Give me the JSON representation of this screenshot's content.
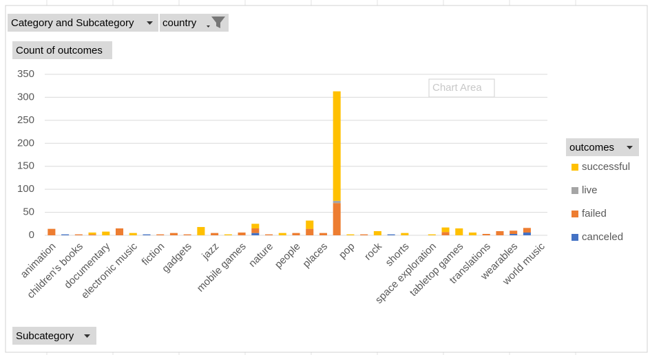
{
  "field_buttons": {
    "category": "Category and Subcategory",
    "country": "country",
    "values": "Count of outcomes",
    "legend": "outcomes",
    "axis": "Subcategory"
  },
  "tooltip": "Chart Area",
  "chart_data": {
    "type": "bar",
    "stacked": true,
    "categories": [
      "animation",
      null,
      "children's books",
      null,
      "documentary",
      null,
      "electronic music",
      null,
      "fiction",
      null,
      "gadgets",
      null,
      "jazz",
      null,
      "mobile games",
      null,
      "nature",
      null,
      "people",
      null,
      "places",
      null,
      "pop",
      null,
      "rock",
      null,
      "shorts",
      null,
      "space exploration",
      null,
      "tabletop games",
      null,
      "translations",
      null,
      "wearables",
      null,
      "world music"
    ],
    "series": [
      {
        "name": "canceled",
        "color": "#4472c4",
        "values": [
          0,
          2,
          0,
          0,
          0,
          0,
          0,
          2,
          0,
          0,
          0,
          0,
          0,
          0,
          0,
          5,
          0,
          0,
          0,
          0,
          0,
          0,
          0,
          0,
          0,
          2,
          0,
          0,
          0,
          0,
          0,
          0,
          0,
          0,
          3,
          6,
          0
        ]
      },
      {
        "name": "failed",
        "color": "#ed7d31",
        "values": [
          14,
          0,
          2,
          2,
          0,
          15,
          0,
          0,
          2,
          5,
          2,
          0,
          5,
          0,
          6,
          10,
          2,
          0,
          5,
          14,
          5,
          70,
          0,
          2,
          0,
          0,
          0,
          0,
          0,
          7,
          0,
          0,
          3,
          9,
          7,
          10,
          0
        ]
      },
      {
        "name": "live",
        "color": "#a5a5a5",
        "values": [
          0,
          0,
          0,
          0,
          0,
          0,
          0,
          0,
          0,
          0,
          0,
          0,
          0,
          0,
          0,
          0,
          0,
          0,
          0,
          0,
          0,
          5,
          0,
          0,
          0,
          0,
          0,
          0,
          0,
          0,
          0,
          0,
          0,
          0,
          0,
          0,
          0
        ]
      },
      {
        "name": "successful",
        "color": "#ffc000",
        "values": [
          0,
          0,
          0,
          4,
          8,
          0,
          5,
          0,
          0,
          0,
          0,
          18,
          0,
          2,
          0,
          10,
          0,
          5,
          0,
          18,
          0,
          238,
          2,
          0,
          9,
          0,
          5,
          0,
          2,
          10,
          15,
          6,
          0,
          0,
          0,
          0,
          0
        ]
      }
    ],
    "ylim": [
      0,
      350
    ],
    "yticks": [
      0,
      50,
      100,
      150,
      200,
      250,
      300,
      350
    ],
    "grid": true,
    "legend": "right"
  }
}
